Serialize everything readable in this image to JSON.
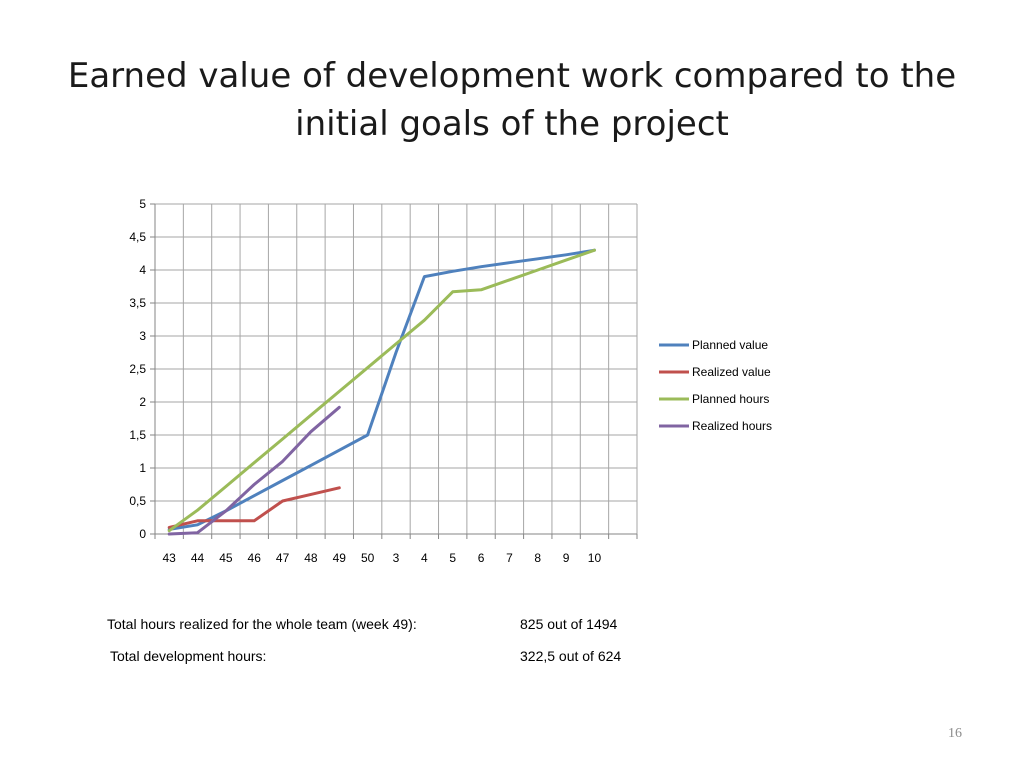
{
  "slide": {
    "title_line1": "Earned value of development work compared to the",
    "title_line2": "initial goals of the project",
    "page_number": "16"
  },
  "stats": [
    {
      "label": "Total hours realized for the whole team (week 49):",
      "value": "825 out of 1494"
    },
    {
      "label": "Total development hours:",
      "value": "322,5 out of 624"
    }
  ],
  "chart_data": {
    "type": "line",
    "categories": [
      "43",
      "44",
      "45",
      "46",
      "47",
      "48",
      "49",
      "50",
      "3",
      "4",
      "5",
      "6",
      "7",
      "8",
      "9",
      "10"
    ],
    "ylim": [
      0,
      5
    ],
    "yticks": [
      "0",
      "0,5",
      "1",
      "1,5",
      "2",
      "2,5",
      "3",
      "3,5",
      "4",
      "4,5",
      "5"
    ],
    "grid": true,
    "legend_position": "right",
    "series": [
      {
        "name": "Planned value",
        "color": "#4f81bd",
        "values": [
          0.07,
          0.14,
          0.35,
          0.58,
          0.81,
          1.04,
          1.27,
          1.5,
          2.75,
          3.9,
          3.98,
          4.05,
          4.11,
          4.17,
          4.23,
          4.3
        ]
      },
      {
        "name": "Realized value",
        "color": "#c0504d",
        "values": [
          0.1,
          0.2,
          0.2,
          0.2,
          0.5,
          0.6,
          0.7,
          null,
          null,
          null,
          null,
          null,
          null,
          null,
          null,
          null
        ]
      },
      {
        "name": "Planned hours",
        "color": "#9bbb59",
        "values": [
          0.05,
          0.36,
          0.72,
          1.08,
          1.44,
          1.8,
          2.16,
          2.52,
          2.88,
          3.24,
          3.67,
          3.7,
          3.85,
          4.0,
          4.15,
          4.3
        ]
      },
      {
        "name": "Realized hours",
        "color": "#8064a2",
        "values": [
          0.0,
          0.02,
          0.35,
          0.75,
          1.1,
          1.55,
          1.92,
          null,
          null,
          null,
          null,
          null,
          null,
          null,
          null,
          null
        ]
      }
    ]
  }
}
